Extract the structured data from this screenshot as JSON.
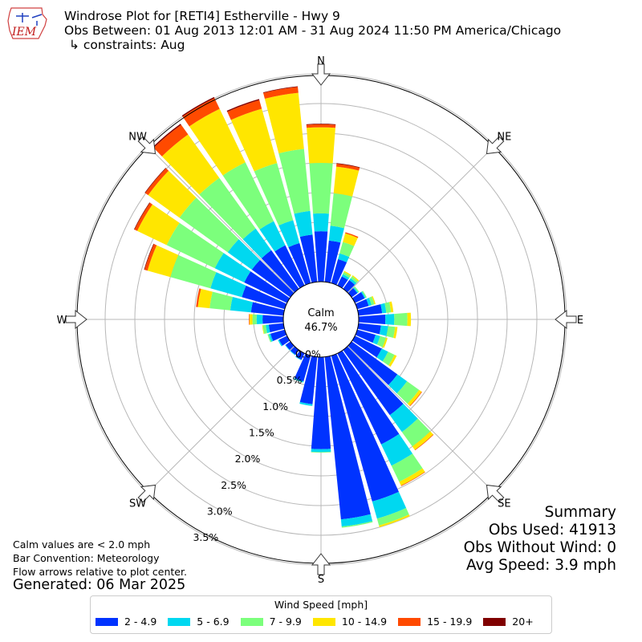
{
  "header": {
    "title": "Windrose Plot for [RETI4] Estherville - Hwy 9",
    "obs_between": "Obs Between: 01 Aug 2013 12:01 AM - 31 Aug 2024 11:50 PM America/Chicago",
    "constraints": "↳ constraints: Aug"
  },
  "logo": {
    "text": "IEM"
  },
  "notes": {
    "calm": "Calm values are < 2.0 mph",
    "convention": "Bar Convention: Meteorology",
    "flow": "Flow arrows relative to plot center.",
    "generated": "Generated: 06 Mar 2025"
  },
  "summary": {
    "title": "Summary",
    "obs_used": "Obs Used: 41913",
    "obs_without_wind": "Obs Without Wind: 0",
    "avg_speed": "Avg Speed: 3.9 mph"
  },
  "chart_data": {
    "type": "windrose",
    "calm_label": "Calm",
    "calm_value": "46.7%",
    "radial_ticks": [
      "0.0%",
      "0.5%",
      "1.0%",
      "1.5%",
      "2.0%",
      "2.5%",
      "3.0%",
      "3.5%"
    ],
    "radial_values": [
      0,
      0.5,
      1.0,
      1.5,
      2.0,
      2.5,
      3.0,
      3.5
    ],
    "directions": [
      "N",
      "NE",
      "E",
      "SE",
      "S",
      "SW",
      "W",
      "NW"
    ],
    "legend_title": "Wind Speed [mph]",
    "bins": [
      "2 - 4.9",
      "5 - 6.9",
      "7 - 9.9",
      "10 - 14.9",
      "15 - 19.9",
      "20+"
    ],
    "colors": [
      "#0033ff",
      "#00d8f0",
      "#7cff7c",
      "#ffe600",
      "#ff4a00",
      "#800000"
    ],
    "sectors": [
      {
        "dir": 0,
        "values": [
          0.85,
          0.3,
          0.85,
          0.6,
          0.05,
          0.01
        ]
      },
      {
        "dir": 10,
        "values": [
          0.7,
          0.25,
          0.55,
          0.45,
          0.05,
          0.01
        ]
      },
      {
        "dir": 20,
        "values": [
          0.42,
          0.1,
          0.2,
          0.15,
          0.02,
          0.0
        ]
      },
      {
        "dir": 30,
        "values": [
          0.17,
          0.04,
          0.04,
          0.02,
          0.0,
          0.0
        ]
      },
      {
        "dir": 40,
        "values": [
          0.18,
          0.04,
          0.04,
          0.02,
          0.0,
          0.0
        ]
      },
      {
        "dir": 50,
        "values": [
          0.12,
          0.02,
          0.02,
          0.0,
          0.0,
          0.0
        ]
      },
      {
        "dir": 60,
        "values": [
          0.18,
          0.02,
          0.02,
          0.0,
          0.0,
          0.0
        ]
      },
      {
        "dir": 70,
        "values": [
          0.2,
          0.05,
          0.05,
          0.02,
          0.0,
          0.0
        ]
      },
      {
        "dir": 80,
        "values": [
          0.4,
          0.07,
          0.08,
          0.04,
          0.0,
          0.0
        ]
      },
      {
        "dir": 90,
        "values": [
          0.45,
          0.15,
          0.22,
          0.06,
          0.0,
          0.0
        ]
      },
      {
        "dir": 100,
        "values": [
          0.38,
          0.12,
          0.12,
          0.04,
          0.0,
          0.0
        ]
      },
      {
        "dir": 110,
        "values": [
          0.32,
          0.08,
          0.1,
          0.03,
          0.0,
          0.0
        ]
      },
      {
        "dir": 120,
        "values": [
          0.5,
          0.12,
          0.12,
          0.04,
          0.0,
          0.0
        ]
      },
      {
        "dir": 130,
        "values": [
          0.95,
          0.2,
          0.25,
          0.05,
          0.01,
          0.0
        ]
      },
      {
        "dir": 140,
        "values": [
          1.35,
          0.35,
          0.3,
          0.07,
          0.01,
          0.0
        ]
      },
      {
        "dir": 150,
        "values": [
          1.7,
          0.4,
          0.3,
          0.07,
          0.01,
          0.0
        ]
      },
      {
        "dir": 160,
        "values": [
          2.55,
          0.3,
          0.12,
          0.03,
          0.0,
          0.0
        ]
      },
      {
        "dir": 170,
        "values": [
          2.75,
          0.12,
          0.02,
          0.0,
          0.0,
          0.0
        ]
      },
      {
        "dir": 180,
        "values": [
          1.55,
          0.05,
          0.01,
          0.0,
          0.0,
          0.0
        ]
      },
      {
        "dir": 190,
        "values": [
          0.8,
          0.03,
          0.0,
          0.0,
          0.0,
          0.0
        ]
      },
      {
        "dir": 200,
        "values": [
          0.45,
          0.02,
          0.0,
          0.0,
          0.0,
          0.0
        ]
      },
      {
        "dir": 210,
        "values": [
          0.12,
          0.01,
          0.0,
          0.0,
          0.0,
          0.0
        ]
      },
      {
        "dir": 220,
        "values": [
          0.1,
          0.01,
          0.0,
          0.0,
          0.0,
          0.0
        ]
      },
      {
        "dir": 230,
        "values": [
          0.1,
          0.01,
          0.0,
          0.0,
          0.0,
          0.0
        ]
      },
      {
        "dir": 240,
        "values": [
          0.15,
          0.02,
          0.0,
          0.0,
          0.0,
          0.0
        ]
      },
      {
        "dir": 250,
        "values": [
          0.25,
          0.03,
          0.02,
          0.0,
          0.0,
          0.0
        ]
      },
      {
        "dir": 260,
        "values": [
          0.25,
          0.05,
          0.05,
          0.01,
          0.0,
          0.0
        ]
      },
      {
        "dir": 270,
        "values": [
          0.35,
          0.1,
          0.07,
          0.05,
          0.01,
          0.0
        ]
      },
      {
        "dir": 280,
        "values": [
          0.55,
          0.35,
          0.35,
          0.2,
          0.03,
          0.0
        ]
      },
      {
        "dir": 290,
        "values": [
          0.75,
          0.55,
          0.7,
          0.4,
          0.05,
          0.01
        ]
      },
      {
        "dir": 300,
        "values": [
          0.8,
          0.55,
          0.9,
          0.55,
          0.05,
          0.01
        ]
      },
      {
        "dir": 310,
        "values": [
          0.8,
          0.5,
          1.0,
          0.65,
          0.06,
          0.01
        ]
      },
      {
        "dir": 320,
        "values": [
          0.8,
          0.45,
          1.05,
          0.9,
          0.2,
          0.02
        ]
      },
      {
        "dir": 330,
        "values": [
          0.75,
          0.45,
          1.1,
          1.0,
          0.2,
          0.02
        ]
      },
      {
        "dir": 340,
        "values": [
          0.7,
          0.4,
          1.0,
          0.95,
          0.15,
          0.02
        ]
      },
      {
        "dir": 350,
        "values": [
          0.8,
          0.4,
          1.05,
          0.95,
          0.1,
          0.01
        ]
      }
    ]
  }
}
